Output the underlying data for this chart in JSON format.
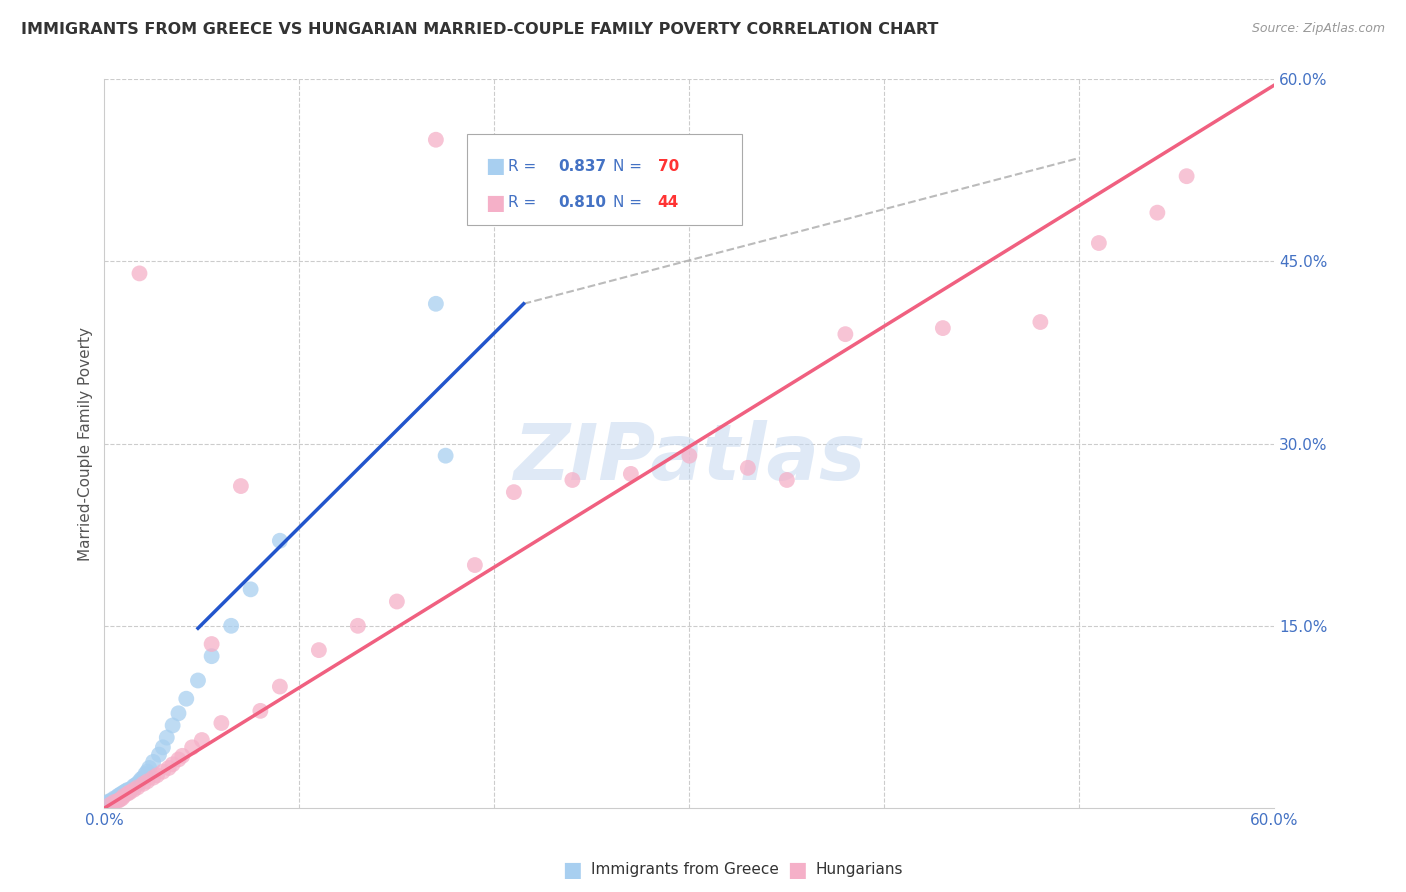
{
  "title": "IMMIGRANTS FROM GREECE VS HUNGARIAN MARRIED-COUPLE FAMILY POVERTY CORRELATION CHART",
  "source": "Source: ZipAtlas.com",
  "ylabel": "Married-Couple Family Poverty",
  "xlim": [
    0.0,
    0.6
  ],
  "ylim": [
    0.0,
    0.6
  ],
  "xticks": [
    0.0,
    0.1,
    0.2,
    0.3,
    0.4,
    0.5,
    0.6
  ],
  "xticklabels": [
    "0.0%",
    "",
    "",
    "",
    "",
    "",
    "60.0%"
  ],
  "yticklabels_right": [
    "",
    "15.0%",
    "30.0%",
    "45.0%",
    "60.0%"
  ],
  "yticks_right": [
    0.0,
    0.15,
    0.3,
    0.45,
    0.6
  ],
  "series1_label": "Immigrants from Greece",
  "series1_R": "0.837",
  "series1_N": "70",
  "series1_color": "#a8cff0",
  "series1_line_color": "#2255cc",
  "series2_label": "Hungarians",
  "series2_R": "0.810",
  "series2_N": "44",
  "series2_color": "#f5b0c8",
  "series2_line_color": "#f06080",
  "watermark": "ZIPatlas",
  "background_color": "#ffffff",
  "grid_color": "#cccccc",
  "title_color": "#333333",
  "axis_label_color": "#555555",
  "tick_label_color": "#4472c4",
  "legend_R_color": "#4472c4",
  "legend_N_color": "#ff3333",
  "blue_line_x": [
    0.048,
    0.215
  ],
  "blue_line_y": [
    0.148,
    0.415
  ],
  "pink_line_x": [
    0.0,
    0.6
  ],
  "pink_line_y": [
    0.0,
    0.595
  ],
  "dash_line_x": [
    0.215,
    0.5
  ],
  "dash_line_y": [
    0.415,
    0.535
  ],
  "s1_x": [
    0.001,
    0.001,
    0.001,
    0.001,
    0.001,
    0.001,
    0.001,
    0.002,
    0.002,
    0.002,
    0.002,
    0.002,
    0.002,
    0.003,
    0.003,
    0.003,
    0.003,
    0.003,
    0.004,
    0.004,
    0.004,
    0.004,
    0.005,
    0.005,
    0.005,
    0.005,
    0.006,
    0.006,
    0.006,
    0.007,
    0.007,
    0.007,
    0.007,
    0.008,
    0.008,
    0.008,
    0.009,
    0.009,
    0.01,
    0.01,
    0.011,
    0.011,
    0.012,
    0.012,
    0.013,
    0.014,
    0.015,
    0.015,
    0.016,
    0.017,
    0.018,
    0.019,
    0.02,
    0.021,
    0.022,
    0.023,
    0.025,
    0.028,
    0.03,
    0.032,
    0.035,
    0.038,
    0.042,
    0.048,
    0.055,
    0.065,
    0.075,
    0.09,
    0.17,
    0.175
  ],
  "s1_y": [
    0.001,
    0.001,
    0.002,
    0.002,
    0.003,
    0.003,
    0.003,
    0.002,
    0.003,
    0.003,
    0.004,
    0.004,
    0.005,
    0.003,
    0.004,
    0.004,
    0.005,
    0.006,
    0.004,
    0.005,
    0.005,
    0.006,
    0.005,
    0.006,
    0.007,
    0.008,
    0.006,
    0.007,
    0.008,
    0.007,
    0.008,
    0.009,
    0.01,
    0.008,
    0.009,
    0.011,
    0.01,
    0.012,
    0.011,
    0.013,
    0.012,
    0.014,
    0.013,
    0.015,
    0.015,
    0.016,
    0.017,
    0.018,
    0.019,
    0.02,
    0.022,
    0.024,
    0.025,
    0.028,
    0.03,
    0.033,
    0.038,
    0.044,
    0.05,
    0.058,
    0.068,
    0.078,
    0.09,
    0.105,
    0.125,
    0.15,
    0.18,
    0.22,
    0.415,
    0.29
  ],
  "s2_x": [
    0.003,
    0.005,
    0.007,
    0.008,
    0.009,
    0.01,
    0.012,
    0.013,
    0.015,
    0.017,
    0.018,
    0.02,
    0.022,
    0.025,
    0.027,
    0.03,
    0.033,
    0.035,
    0.038,
    0.04,
    0.045,
    0.05,
    0.055,
    0.06,
    0.07,
    0.08,
    0.09,
    0.11,
    0.13,
    0.15,
    0.17,
    0.19,
    0.21,
    0.24,
    0.27,
    0.3,
    0.33,
    0.35,
    0.38,
    0.43,
    0.48,
    0.51,
    0.54,
    0.555
  ],
  "s2_y": [
    0.003,
    0.005,
    0.006,
    0.007,
    0.008,
    0.01,
    0.012,
    0.013,
    0.015,
    0.017,
    0.44,
    0.02,
    0.022,
    0.025,
    0.027,
    0.03,
    0.033,
    0.036,
    0.04,
    0.043,
    0.05,
    0.056,
    0.135,
    0.07,
    0.265,
    0.08,
    0.1,
    0.13,
    0.15,
    0.17,
    0.55,
    0.2,
    0.26,
    0.27,
    0.275,
    0.29,
    0.28,
    0.27,
    0.39,
    0.395,
    0.4,
    0.465,
    0.49,
    0.52
  ]
}
